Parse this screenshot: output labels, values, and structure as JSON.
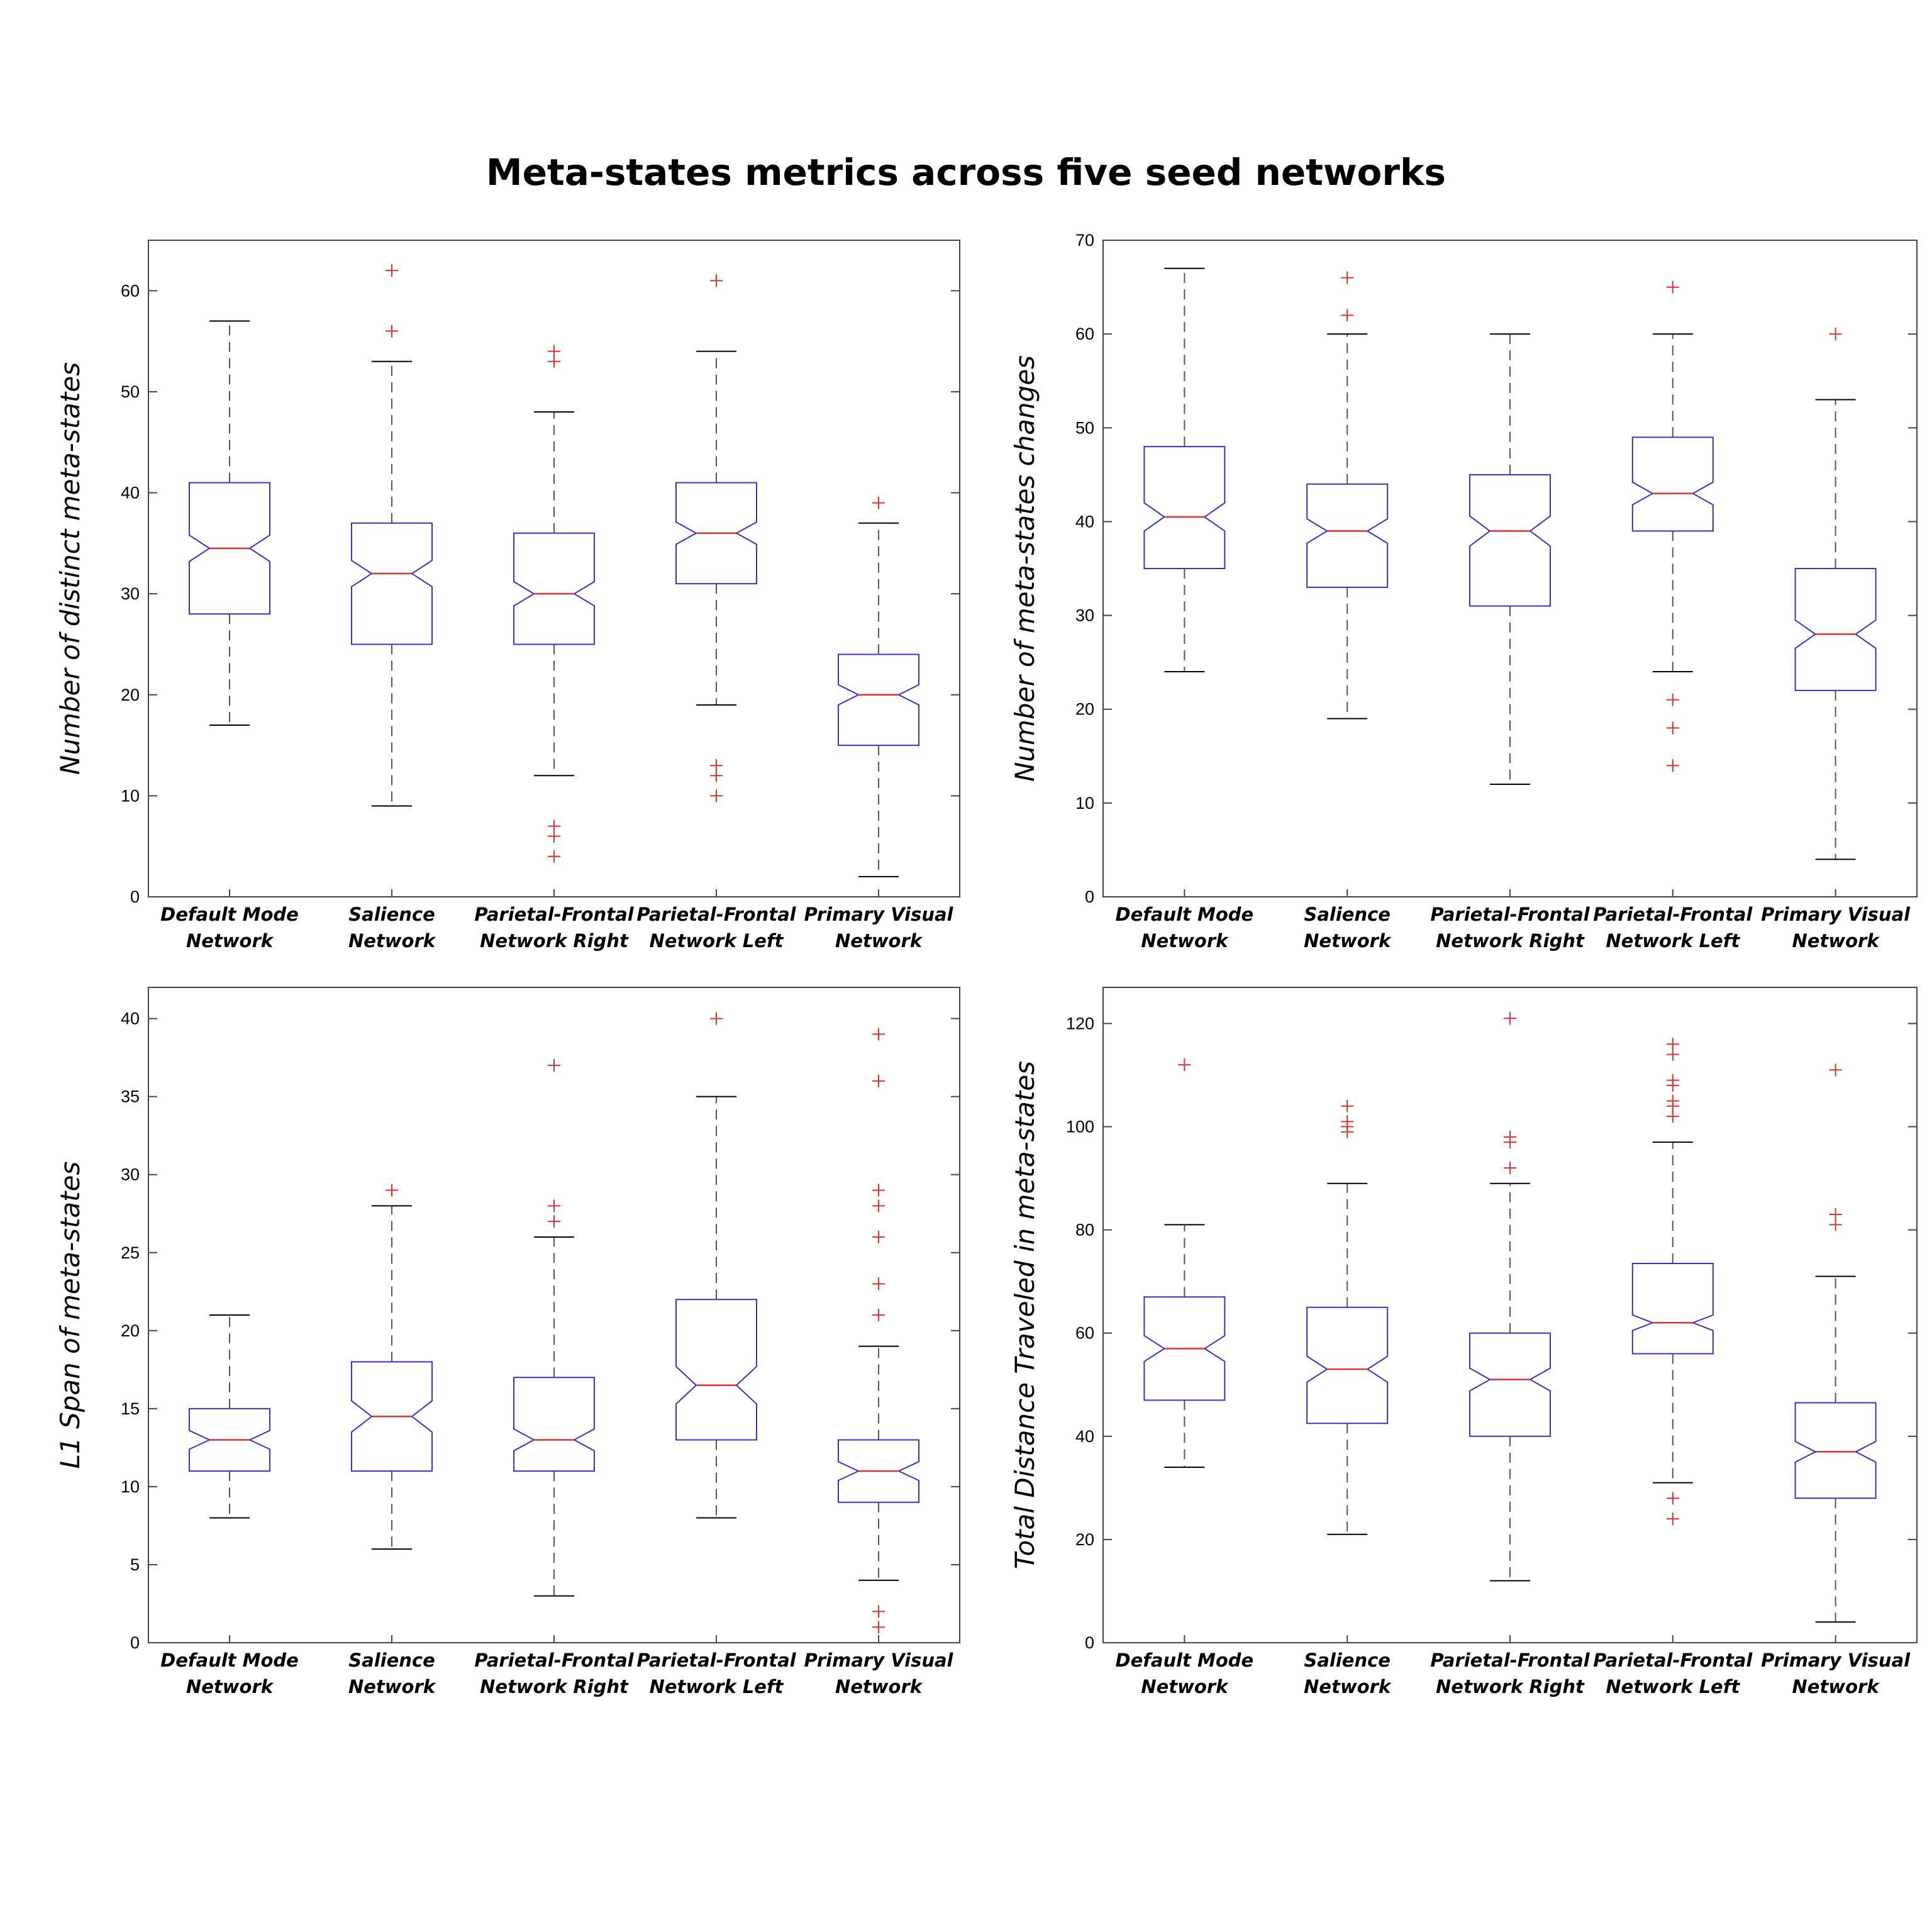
{
  "title": "Meta-states metrics across five seed networks",
  "colors": {
    "box": "#3333cc",
    "median": "#e03030",
    "outlier": "#e03030",
    "whisker": "#555555",
    "axes": "#444444"
  },
  "chart_data": [
    {
      "type": "boxplot",
      "ylabel": "Number of distinct meta-states",
      "ylim": [
        0,
        65
      ],
      "yticks": [
        0,
        10,
        20,
        30,
        40,
        50,
        60
      ],
      "categories": [
        [
          "Default Mode",
          "Network"
        ],
        [
          "Salience",
          "Network"
        ],
        [
          "Parietal-Frontal",
          "Network Right"
        ],
        [
          "Parietal-Frontal",
          "Network Left"
        ],
        [
          "Primary Visual",
          "Network"
        ]
      ],
      "boxes": [
        {
          "whisker_low": 17,
          "q1": 28,
          "median": 34.5,
          "q3": 41,
          "whisker_high": 57,
          "notch": [
            33.2,
            35.8
          ],
          "outliers": []
        },
        {
          "whisker_low": 9,
          "q1": 25,
          "median": 32,
          "q3": 37,
          "whisker_high": 53,
          "notch": [
            30.7,
            33.3
          ],
          "outliers": [
            56,
            62
          ]
        },
        {
          "whisker_low": 12,
          "q1": 25,
          "median": 30,
          "q3": 36,
          "whisker_high": 48,
          "notch": [
            28.8,
            31.2
          ],
          "outliers": [
            4,
            6,
            7,
            53,
            54
          ]
        },
        {
          "whisker_low": 19,
          "q1": 31,
          "median": 36,
          "q3": 41,
          "whisker_high": 54,
          "notch": [
            34.9,
            37.1
          ],
          "outliers": [
            10,
            12,
            13,
            61
          ]
        },
        {
          "whisker_low": 2,
          "q1": 15,
          "median": 20,
          "q3": 24,
          "whisker_high": 37,
          "notch": [
            19.0,
            21.0
          ],
          "outliers": [
            39
          ]
        }
      ]
    },
    {
      "type": "boxplot",
      "ylabel": "Number of meta-states changes",
      "ylim": [
        0,
        70
      ],
      "yticks": [
        0,
        10,
        20,
        30,
        40,
        50,
        60,
        70
      ],
      "categories": [
        [
          "Default Mode",
          "Network"
        ],
        [
          "Salience",
          "Network"
        ],
        [
          "Parietal-Frontal",
          "Network Right"
        ],
        [
          "Parietal-Frontal",
          "Network Left"
        ],
        [
          "Primary Visual",
          "Network"
        ]
      ],
      "boxes": [
        {
          "whisker_low": 24,
          "q1": 35,
          "median": 40.5,
          "q3": 48,
          "whisker_high": 67,
          "notch": [
            39.0,
            42.0
          ],
          "outliers": []
        },
        {
          "whisker_low": 19,
          "q1": 33,
          "median": 39,
          "q3": 44,
          "whisker_high": 60,
          "notch": [
            37.7,
            40.3
          ],
          "outliers": [
            62,
            66
          ]
        },
        {
          "whisker_low": 12,
          "q1": 31,
          "median": 39,
          "q3": 45,
          "whisker_high": 60,
          "notch": [
            37.4,
            40.6
          ],
          "outliers": []
        },
        {
          "whisker_low": 24,
          "q1": 39,
          "median": 43,
          "q3": 49,
          "whisker_high": 60,
          "notch": [
            41.8,
            44.2
          ],
          "outliers": [
            14,
            18,
            21,
            65
          ]
        },
        {
          "whisker_low": 4,
          "q1": 22,
          "median": 28,
          "q3": 35,
          "whisker_high": 53,
          "notch": [
            26.5,
            29.5
          ],
          "outliers": [
            60
          ]
        }
      ]
    },
    {
      "type": "boxplot",
      "ylabel": "L1 Span of meta-states",
      "ylim": [
        0,
        42
      ],
      "yticks": [
        0,
        5,
        10,
        15,
        20,
        25,
        30,
        35,
        40
      ],
      "categories": [
        [
          "Default Mode",
          "Network"
        ],
        [
          "Salience",
          "Network"
        ],
        [
          "Parietal-Frontal",
          "Network Right"
        ],
        [
          "Parietal-Frontal",
          "Network Left"
        ],
        [
          "Primary Visual",
          "Network"
        ]
      ],
      "boxes": [
        {
          "whisker_low": 8,
          "q1": 11,
          "median": 13,
          "q3": 15,
          "whisker_high": 21,
          "notch": [
            12.4,
            13.6
          ],
          "outliers": []
        },
        {
          "whisker_low": 6,
          "q1": 11,
          "median": 14.5,
          "q3": 18,
          "whisker_high": 28,
          "notch": [
            13.5,
            15.5
          ],
          "outliers": [
            29
          ]
        },
        {
          "whisker_low": 3,
          "q1": 11,
          "median": 13,
          "q3": 17,
          "whisker_high": 26,
          "notch": [
            12.3,
            13.7
          ],
          "outliers": [
            27,
            28,
            37
          ]
        },
        {
          "whisker_low": 8,
          "q1": 13,
          "median": 16.5,
          "q3": 22,
          "whisker_high": 35,
          "notch": [
            15.3,
            17.7
          ],
          "outliers": [
            40
          ]
        },
        {
          "whisker_low": 4,
          "q1": 9,
          "median": 11,
          "q3": 13,
          "whisker_high": 19,
          "notch": [
            10.4,
            11.6
          ],
          "outliers": [
            1,
            2,
            21,
            23,
            26,
            28,
            29,
            36,
            39
          ]
        }
      ]
    },
    {
      "type": "boxplot",
      "ylabel": "Total Distance Traveled in meta-states",
      "ylim": [
        0,
        127
      ],
      "yticks": [
        0,
        20,
        40,
        60,
        80,
        100,
        120
      ],
      "categories": [
        [
          "Default Mode",
          "Network"
        ],
        [
          "Salience",
          "Network"
        ],
        [
          "Parietal-Frontal",
          "Network Right"
        ],
        [
          "Parietal-Frontal",
          "Network Left"
        ],
        [
          "Primary Visual",
          "Network"
        ]
      ],
      "boxes": [
        {
          "whisker_low": 34,
          "q1": 47,
          "median": 57,
          "q3": 67,
          "whisker_high": 81,
          "notch": [
            54.5,
            59.5
          ],
          "outliers": [
            112
          ]
        },
        {
          "whisker_low": 21,
          "q1": 42.5,
          "median": 53,
          "q3": 65,
          "whisker_high": 89,
          "notch": [
            50.5,
            55.5
          ],
          "outliers": [
            99,
            100,
            101,
            104
          ]
        },
        {
          "whisker_low": 12,
          "q1": 40,
          "median": 51,
          "q3": 60,
          "whisker_high": 89,
          "notch": [
            48.8,
            53.2
          ],
          "outliers": [
            92,
            97,
            98,
            121
          ]
        },
        {
          "whisker_low": 31,
          "q1": 56,
          "median": 62,
          "q3": 73.5,
          "whisker_high": 97,
          "notch": [
            60.5,
            63.5
          ],
          "outliers": [
            24,
            28,
            102,
            104,
            105,
            108,
            109,
            114,
            116
          ]
        },
        {
          "whisker_low": 4,
          "q1": 28,
          "median": 37,
          "q3": 46.5,
          "whisker_high": 71,
          "notch": [
            35.0,
            39.0
          ],
          "outliers": [
            81,
            83,
            111
          ]
        }
      ]
    }
  ]
}
